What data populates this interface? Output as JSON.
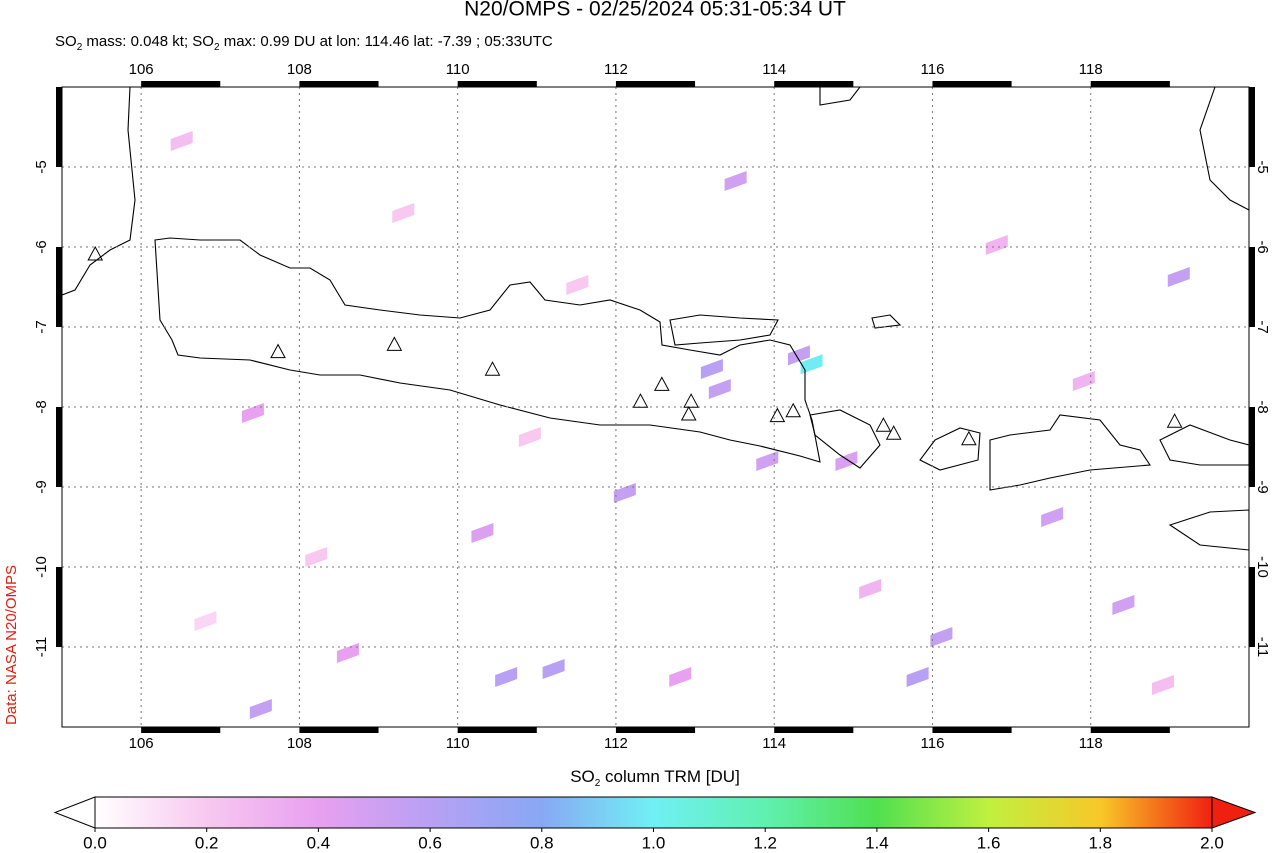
{
  "title": "N20/OMPS - 02/25/2024 05:31-05:34 UT",
  "subtitle": [
    {
      "text": "SO"
    },
    {
      "text": "2",
      "sub": true
    },
    {
      "text": " mass: 0.048 kt; SO"
    },
    {
      "text": "2",
      "sub": true
    },
    {
      "text": " max: 0.99 DU at lon: 114.46 lat: -7.39 ; 05:33UTC"
    }
  ],
  "credit": "Data: NASA N20/OMPS",
  "map": {
    "lon_range": [
      105,
      120
    ],
    "lat_range": [
      -12,
      -4
    ],
    "lon_ticks": [
      106,
      108,
      110,
      112,
      114,
      116,
      118
    ],
    "lat_ticks": [
      -5,
      -6,
      -7,
      -8,
      -9,
      -10,
      -11
    ],
    "volcanoes": [
      [
        105.42,
        -6.1
      ],
      [
        107.73,
        -7.32
      ],
      [
        109.2,
        -7.23
      ],
      [
        110.44,
        -7.54
      ],
      [
        112.31,
        -7.94
      ],
      [
        112.58,
        -7.73
      ],
      [
        112.95,
        -7.94
      ],
      [
        112.92,
        -8.1
      ],
      [
        114.04,
        -8.12
      ],
      [
        114.24,
        -8.06
      ],
      [
        115.38,
        -8.24
      ],
      [
        115.51,
        -8.34
      ],
      [
        116.46,
        -8.41
      ],
      [
        119.06,
        -8.19
      ]
    ],
    "so2_pixels": [
      {
        "lon": 114.46,
        "lat": -7.39,
        "value": 0.99
      },
      {
        "lon": 113.2,
        "lat": -7.45,
        "value": 0.6
      },
      {
        "lon": 113.3,
        "lat": -7.7,
        "value": 0.55
      },
      {
        "lon": 114.3,
        "lat": -7.28,
        "value": 0.55
      },
      {
        "lon": 113.9,
        "lat": -8.6,
        "value": 0.5
      },
      {
        "lon": 112.1,
        "lat": -9.0,
        "value": 0.55
      },
      {
        "lon": 111.2,
        "lat": -11.2,
        "value": 0.6
      },
      {
        "lon": 110.6,
        "lat": -11.3,
        "value": 0.6
      },
      {
        "lon": 107.5,
        "lat": -11.7,
        "value": 0.55
      },
      {
        "lon": 115.8,
        "lat": -11.3,
        "value": 0.6
      },
      {
        "lon": 116.1,
        "lat": -10.8,
        "value": 0.55
      },
      {
        "lon": 118.4,
        "lat": -10.4,
        "value": 0.5
      },
      {
        "lon": 117.5,
        "lat": -9.3,
        "value": 0.5
      },
      {
        "lon": 119.1,
        "lat": -6.3,
        "value": 0.55
      },
      {
        "lon": 113.5,
        "lat": -5.1,
        "value": 0.5
      },
      {
        "lon": 108.6,
        "lat": -11.0,
        "value": 0.4
      },
      {
        "lon": 107.4,
        "lat": -8.0,
        "value": 0.4
      },
      {
        "lon": 110.3,
        "lat": -9.5,
        "value": 0.45
      },
      {
        "lon": 114.9,
        "lat": -8.6,
        "value": 0.45
      },
      {
        "lon": 112.8,
        "lat": -11.3,
        "value": 0.4
      },
      {
        "lon": 106.5,
        "lat": -4.6,
        "value": 0.25
      },
      {
        "lon": 109.3,
        "lat": -5.5,
        "value": 0.2
      },
      {
        "lon": 111.5,
        "lat": -6.4,
        "value": 0.2
      },
      {
        "lon": 116.8,
        "lat": -5.9,
        "value": 0.3
      },
      {
        "lon": 117.9,
        "lat": -7.6,
        "value": 0.3
      },
      {
        "lon": 108.2,
        "lat": -9.8,
        "value": 0.2
      },
      {
        "lon": 115.2,
        "lat": -10.2,
        "value": 0.3
      },
      {
        "lon": 118.9,
        "lat": -11.4,
        "value": 0.25
      },
      {
        "lon": 110.9,
        "lat": -8.3,
        "value": 0.2
      },
      {
        "lon": 106.8,
        "lat": -10.6,
        "value": 0.15
      }
    ]
  },
  "colorbar": {
    "label": [
      {
        "text": "SO"
      },
      {
        "text": "2",
        "sub": true
      },
      {
        "text": " column TRM [DU]"
      }
    ],
    "range": [
      0,
      2
    ],
    "ticks": [
      {
        "value": 0,
        "label": "0.0"
      },
      {
        "value": 0.2,
        "label": "0.2"
      },
      {
        "value": 0.4,
        "label": "0.4"
      },
      {
        "value": 0.6,
        "label": "0.6"
      },
      {
        "value": 0.8,
        "label": "0.8"
      },
      {
        "value": 1,
        "label": "1.0"
      },
      {
        "value": 1.2,
        "label": "1.2"
      },
      {
        "value": 1.4,
        "label": "1.4"
      },
      {
        "value": 1.6,
        "label": "1.6"
      },
      {
        "value": 1.8,
        "label": "1.8"
      },
      {
        "value": 2,
        "label": "2.0"
      }
    ],
    "stops": [
      {
        "value": 0,
        "color": "#ffffff"
      },
      {
        "value": 0.2,
        "color": "#f8c8f0"
      },
      {
        "value": 0.4,
        "color": "#e8a0f0"
      },
      {
        "value": 0.6,
        "color": "#b8a0f4"
      },
      {
        "value": 0.8,
        "color": "#88a8f4"
      },
      {
        "value": 1,
        "color": "#70f0f4"
      },
      {
        "value": 1.2,
        "color": "#60f0b0"
      },
      {
        "value": 1.4,
        "color": "#50e050"
      },
      {
        "value": 1.6,
        "color": "#c0f040"
      },
      {
        "value": 1.8,
        "color": "#f8c828"
      },
      {
        "value": 2,
        "color": "#f02010"
      }
    ],
    "under_color": "#ffffff",
    "over_color": "#f02010"
  }
}
